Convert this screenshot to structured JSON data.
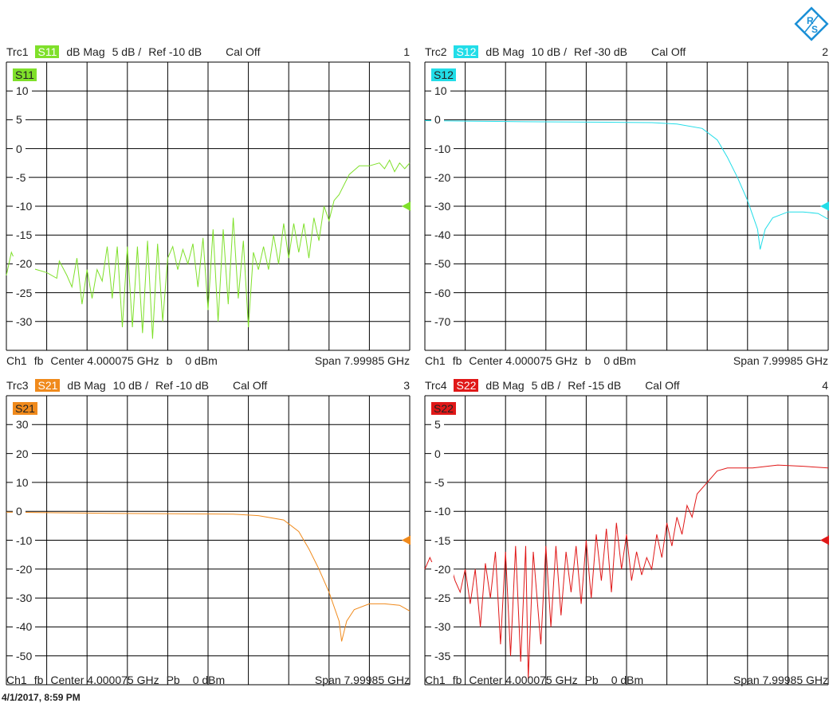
{
  "timestamp": "4/1/2017, 8:59 PM",
  "logo": {
    "text": "R&S",
    "color": "#1a8fd6"
  },
  "panels": [
    {
      "trace": "Trc1",
      "param": "S11",
      "color": "#7fe02a",
      "format": "dB Mag",
      "scale": "5 dB /",
      "ref": "Ref -10 dB",
      "cal": "Cal Off",
      "number": "1",
      "footer": {
        "ch": "Ch1",
        "fb": "fb",
        "center": "Center  4.000075 GHz",
        "mode": "b",
        "power": "0 dBm",
        "span": "Span  7.99985 GHz"
      }
    },
    {
      "trace": "Trc2",
      "param": "S12",
      "color": "#22dde8",
      "format": "dB Mag",
      "scale": "10 dB /",
      "ref": "Ref -30 dB",
      "cal": "Cal Off",
      "number": "2",
      "footer": {
        "ch": "Ch1",
        "fb": "fb",
        "center": "Center  4.000075 GHz",
        "mode": "b",
        "power": "0 dBm",
        "span": "Span  7.99985 GHz"
      }
    },
    {
      "trace": "Trc3",
      "param": "S21",
      "color": "#f08a1c",
      "format": "dB Mag",
      "scale": "10 dB /",
      "ref": "Ref -10 dB",
      "cal": "Cal Off",
      "number": "3",
      "footer": {
        "ch": "Ch1",
        "fb": "fb",
        "center": "Center  4.000075 GHz",
        "mode": "Pb",
        "power": "0 dBm",
        "span": "Span  7.99985 GHz"
      }
    },
    {
      "trace": "Trc4",
      "param": "S22",
      "color": "#e01818",
      "format": "dB Mag",
      "scale": "5 dB /",
      "ref": "Ref -15 dB",
      "cal": "Cal Off",
      "number": "4",
      "footer": {
        "ch": "Ch1",
        "fb": "fb",
        "center": "Center  4.000075 GHz",
        "mode": "Pb",
        "power": "0 dBm",
        "span": "Span  7.99985 GHz"
      }
    }
  ],
  "chart_data": [
    {
      "type": "line",
      "title": "S11",
      "xunit": "GHz",
      "xlim": [
        0.0001,
        8.0
      ],
      "ylim": [
        -35,
        15
      ],
      "ref_value": -10,
      "grid": true,
      "yticks": [
        10,
        5,
        0,
        -5,
        -10,
        -15,
        -20,
        -25,
        -30
      ],
      "x": [
        0,
        0.1,
        0.2,
        0.4,
        0.6,
        0.8,
        1.0,
        1.05,
        1.2,
        1.3,
        1.4,
        1.5,
        1.6,
        1.7,
        1.8,
        1.9,
        2.0,
        2.1,
        2.2,
        2.3,
        2.4,
        2.5,
        2.6,
        2.7,
        2.8,
        2.9,
        3.0,
        3.1,
        3.2,
        3.3,
        3.4,
        3.5,
        3.6,
        3.7,
        3.8,
        3.9,
        4.0,
        4.1,
        4.2,
        4.3,
        4.4,
        4.5,
        4.6,
        4.7,
        4.8,
        4.9,
        5.0,
        5.1,
        5.2,
        5.3,
        5.4,
        5.5,
        5.6,
        5.7,
        5.8,
        5.9,
        6.0,
        6.1,
        6.2,
        6.3,
        6.4,
        6.5,
        6.6,
        6.8,
        7.0,
        7.2,
        7.4,
        7.5,
        7.6,
        7.7,
        7.8,
        7.9,
        8.0
      ],
      "y": [
        -22,
        -18,
        -20,
        -20.5,
        -21,
        -21.5,
        -22.5,
        -19.5,
        -22,
        -24,
        -19,
        -27,
        -21,
        -26,
        -21,
        -23,
        -17,
        -26,
        -17,
        -31,
        -17,
        -31,
        -17,
        -32,
        -16,
        -33,
        -16.5,
        -30,
        -19,
        -17,
        -21,
        -17.5,
        -20,
        -16.5,
        -24,
        -15.5,
        -28,
        -14,
        -30,
        -14,
        -27,
        -12,
        -26,
        -16,
        -31,
        -18,
        -21,
        -17,
        -21,
        -15,
        -20,
        -13,
        -19,
        -13,
        -18,
        -13,
        -19,
        -12,
        -16,
        -10,
        -12.5,
        -9,
        -8,
        -4.5,
        -3,
        -3,
        -2.5,
        -3.5,
        -2,
        -4,
        -2.5,
        -3.5,
        -2.5
      ]
    },
    {
      "type": "line",
      "title": "S12",
      "xunit": "GHz",
      "xlim": [
        0.0001,
        8.0
      ],
      "ylim": [
        -80,
        20
      ],
      "ref_value": -30,
      "grid": true,
      "yticks": [
        10,
        0,
        -10,
        -20,
        -30,
        -40,
        -50,
        -60,
        -70
      ],
      "x": [
        0,
        1,
        2,
        3,
        4,
        4.5,
        5.0,
        5.5,
        5.8,
        6.0,
        6.2,
        6.4,
        6.5,
        6.6,
        6.65,
        6.75,
        6.9,
        7.2,
        7.5,
        7.8,
        8.0
      ],
      "y": [
        -0.3,
        -0.5,
        -0.7,
        -0.8,
        -0.9,
        -1.0,
        -1.5,
        -3,
        -7,
        -13,
        -20,
        -28,
        -33,
        -38,
        -45,
        -38,
        -34,
        -32,
        -32,
        -32.5,
        -34.5
      ]
    },
    {
      "type": "line",
      "title": "S21",
      "xunit": "GHz",
      "xlim": [
        0.0001,
        8.0
      ],
      "ylim": [
        -60,
        40
      ],
      "ref_value": -10,
      "grid": true,
      "yticks": [
        30,
        20,
        10,
        0,
        -10,
        -20,
        -30,
        -40,
        -50
      ],
      "x": [
        0,
        1,
        2,
        3,
        4,
        4.5,
        5.0,
        5.5,
        5.8,
        6.0,
        6.2,
        6.4,
        6.5,
        6.6,
        6.65,
        6.75,
        6.9,
        7.2,
        7.5,
        7.8,
        8.0
      ],
      "y": [
        -0.3,
        -0.5,
        -0.7,
        -0.8,
        -0.9,
        -1.0,
        -1.5,
        -3,
        -7,
        -13,
        -20,
        -28,
        -33,
        -38,
        -45,
        -38,
        -34,
        -32,
        -32,
        -32.5,
        -34.5
      ]
    },
    {
      "type": "line",
      "title": "S22",
      "xunit": "GHz",
      "xlim": [
        0.0001,
        8.0
      ],
      "ylim": [
        -40,
        10
      ],
      "ref_value": -15,
      "grid": true,
      "yticks": [
        5,
        0,
        -5,
        -10,
        -15,
        -20,
        -25,
        -30,
        -35
      ],
      "x": [
        0,
        0.1,
        0.2,
        0.3,
        0.4,
        0.5,
        0.6,
        0.7,
        0.8,
        0.9,
        1.0,
        1.1,
        1.2,
        1.3,
        1.4,
        1.5,
        1.6,
        1.7,
        1.8,
        1.9,
        2.0,
        2.05,
        2.15,
        2.3,
        2.4,
        2.5,
        2.6,
        2.7,
        2.8,
        2.9,
        3.0,
        3.1,
        3.2,
        3.3,
        3.4,
        3.5,
        3.6,
        3.7,
        3.8,
        3.9,
        4.0,
        4.1,
        4.2,
        4.3,
        4.4,
        4.5,
        4.6,
        4.7,
        4.8,
        4.9,
        5.0,
        5.1,
        5.2,
        5.3,
        5.4,
        5.6,
        5.8,
        6.0,
        6.5,
        7.0,
        7.5,
        8.0
      ],
      "y": [
        -20,
        -18,
        -20,
        -19,
        -21,
        -19,
        -22,
        -24,
        -20,
        -26,
        -20,
        -30,
        -19,
        -25,
        -17,
        -33,
        -17,
        -35,
        -16,
        -36,
        -16,
        -39,
        -17,
        -33,
        -16,
        -30,
        -16,
        -28,
        -17,
        -24,
        -16,
        -26,
        -15,
        -25,
        -14,
        -22,
        -13,
        -24,
        -12,
        -20,
        -14,
        -22,
        -17,
        -21,
        -18,
        -20,
        -14,
        -18,
        -12,
        -16,
        -11,
        -14,
        -9,
        -11,
        -7,
        -5,
        -3,
        -2.5,
        -2.5,
        -2,
        -2.2,
        -2.5
      ]
    }
  ]
}
